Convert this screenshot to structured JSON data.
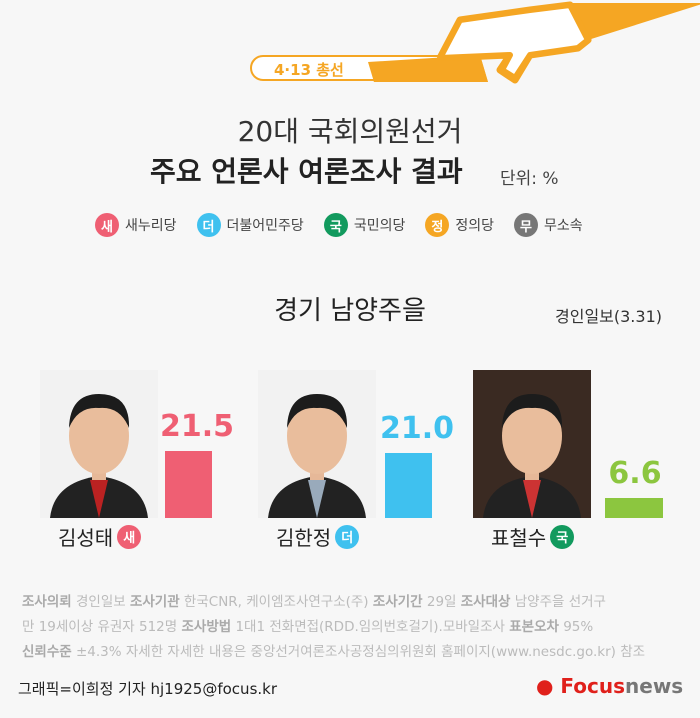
{
  "header": {
    "badge": "4·13 총선",
    "title_line1": "20대 국회의원선거",
    "title_line2": "주요 언론사 여론조사 결과",
    "unit": "단위: %"
  },
  "legend": [
    {
      "symbol": "새",
      "label": "새누리당",
      "color": "#ef5f73"
    },
    {
      "symbol": "더",
      "label": "더불어민주당",
      "color": "#3fc1ef"
    },
    {
      "symbol": "국",
      "label": "국민의당",
      "color": "#129a5e"
    },
    {
      "symbol": "정",
      "label": "정의당",
      "color": "#f5a623"
    },
    {
      "symbol": "무",
      "label": "무소속",
      "color": "#777777"
    }
  ],
  "district": "경기 남양주을",
  "source": "경인일보(3.31)",
  "chart_data": {
    "type": "bar",
    "categories": [
      "김성태",
      "김한정",
      "표철수"
    ],
    "parties": [
      "새",
      "더",
      "국"
    ],
    "values": [
      21.5,
      21.0,
      6.6
    ],
    "colors": [
      "#ef5f73",
      "#3fc1ef",
      "#8cc63f"
    ],
    "ylim": [
      0,
      25
    ],
    "data_labels": [
      "21.5",
      "21.0",
      "6.6"
    ],
    "label_colors": [
      "#ef5f73",
      "#3fc1ef",
      "#8cc63f"
    ]
  },
  "notes": {
    "line1": [
      {
        "b": "조사의뢰"
      },
      {
        "t": " 경인일보 "
      },
      {
        "b": "조사기관"
      },
      {
        "t": " 한국CNR, 케이엠조사연구소(주) "
      },
      {
        "b": "조사기간"
      },
      {
        "t": " 29일 "
      },
      {
        "b": "조사대상"
      },
      {
        "t": " 남양주을 선거구"
      }
    ],
    "line2": [
      {
        "t": "만 19세이상 유권자 512명 "
      },
      {
        "b": "조사방법"
      },
      {
        "t": " 1대1 전화면접(RDD.임의번호걸기).모바일조사 "
      },
      {
        "b": "표본오차"
      },
      {
        "t": " 95%"
      }
    ],
    "line3": [
      {
        "b": "신뢰수준"
      },
      {
        "t": " ±4.3%  자세한 자세한 내용은 중앙선거여론조사공정심의위원회 홈페이지(www.nesdc.go.kr) 참조"
      }
    ]
  },
  "credit": "그래픽=이희정 기자 hj1925@focus.kr",
  "logo": {
    "text1": "Focus",
    "text2": "news",
    "color1": "#e0201b",
    "color2": "#777777"
  }
}
